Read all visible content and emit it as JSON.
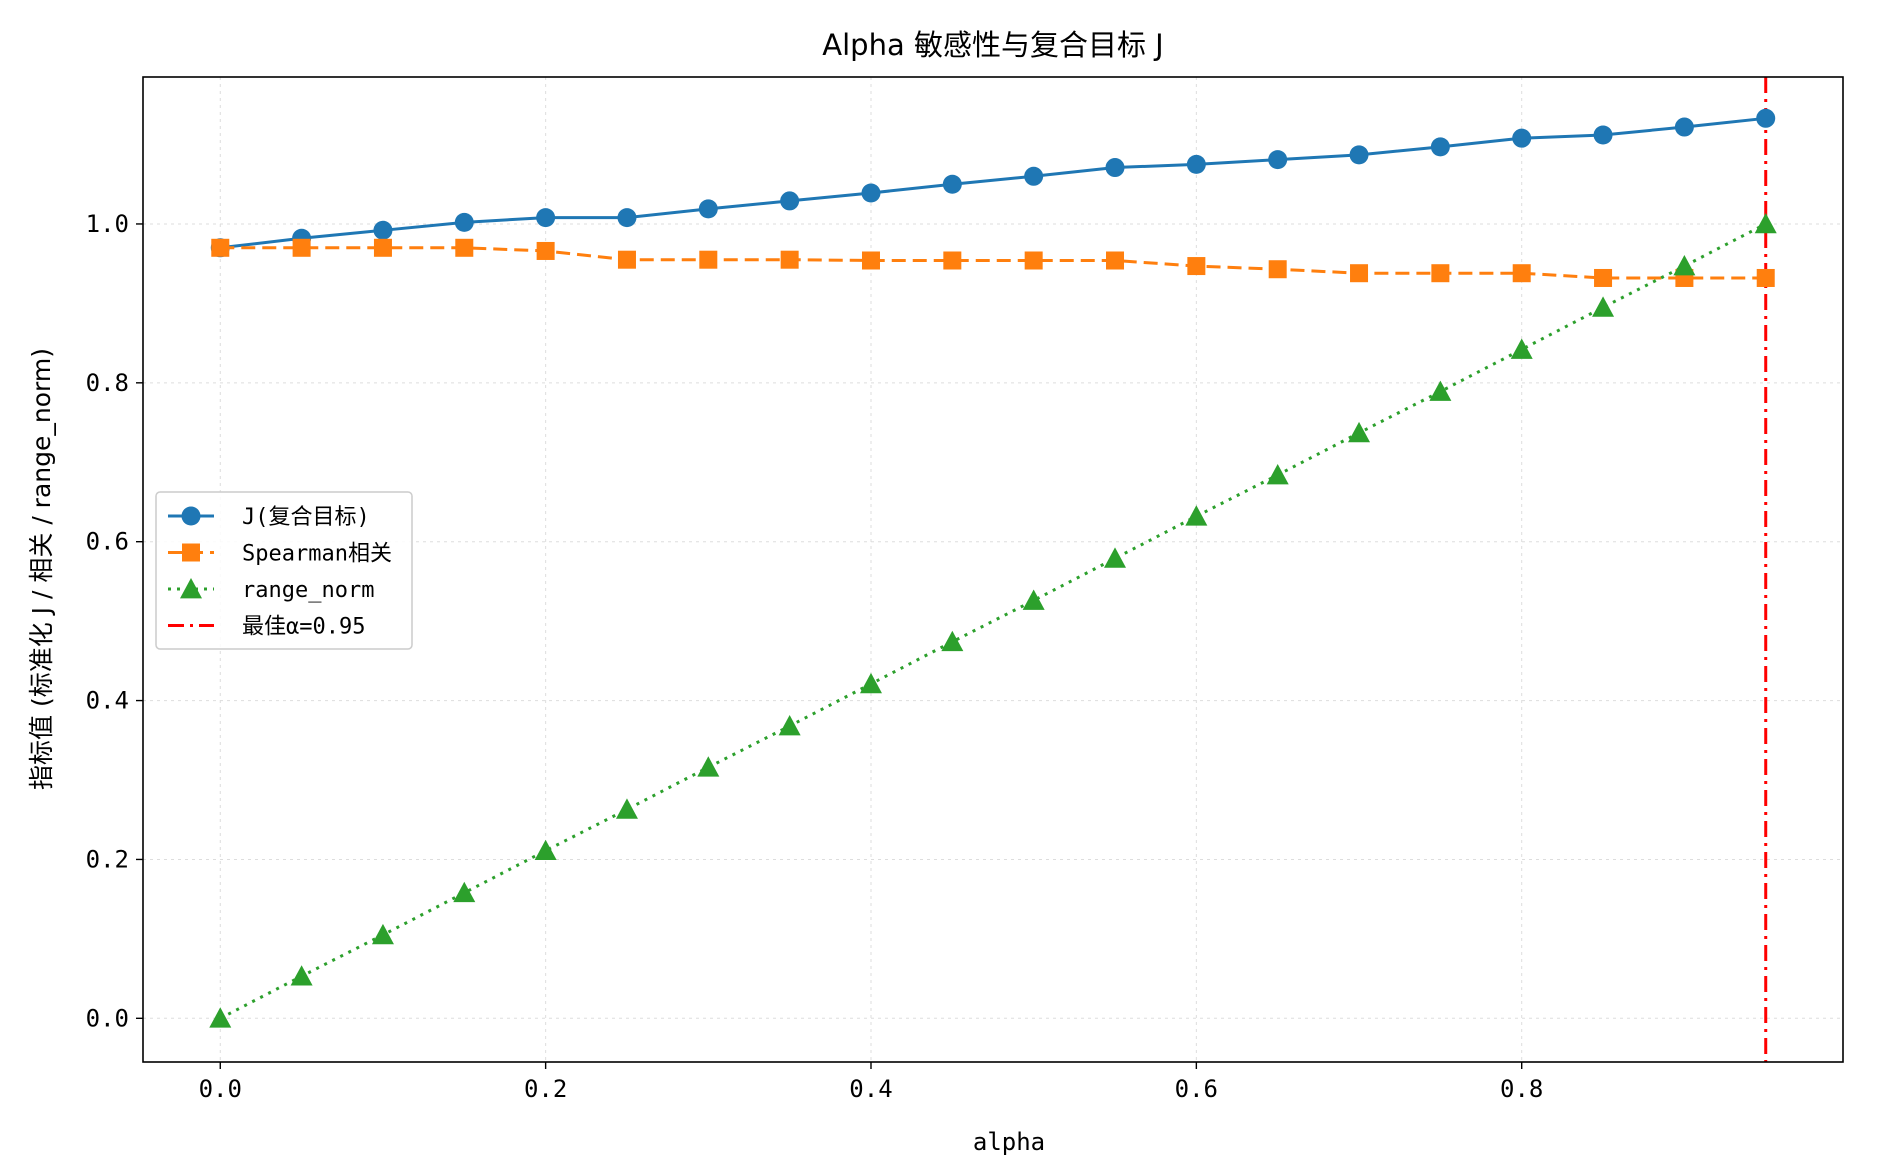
{
  "chart_data": {
    "type": "line",
    "title": "Alpha 敏感性与复合目标 J",
    "xlabel": "alpha",
    "ylabel": "指标值 (标准化 J / 相关 / range_norm)",
    "xlim": [
      -0.0475,
      0.9975
    ],
    "ylim": [
      -0.055,
      1.185
    ],
    "xticks": [
      0.0,
      0.2,
      0.4,
      0.6,
      0.8
    ],
    "xtick_labels": [
      "0.0",
      "0.2",
      "0.4",
      "0.6",
      "0.8"
    ],
    "yticks": [
      0.0,
      0.2,
      0.4,
      0.6,
      0.8,
      1.0
    ],
    "ytick_labels": [
      "0.0",
      "0.2",
      "0.4",
      "0.6",
      "0.8",
      "1.0"
    ],
    "grid": true,
    "legend_position": "center-left",
    "x": [
      0.0,
      0.05,
      0.1,
      0.15,
      0.2,
      0.25,
      0.3,
      0.35,
      0.4,
      0.45,
      0.5,
      0.55,
      0.6,
      0.65,
      0.7,
      0.75,
      0.8,
      0.85,
      0.9,
      0.95
    ],
    "series": [
      {
        "name": "J(复合目标)",
        "color": "#1f77b4",
        "line_style": "solid",
        "marker": "circle",
        "values": [
          0.97,
          0.982,
          0.992,
          1.002,
          1.008,
          1.008,
          1.019,
          1.029,
          1.039,
          1.05,
          1.06,
          1.071,
          1.075,
          1.081,
          1.087,
          1.097,
          1.108,
          1.112,
          1.122,
          1.133
        ]
      },
      {
        "name": "Spearman相关",
        "color": "#ff7f0e",
        "line_style": "dashed",
        "marker": "square",
        "values": [
          0.97,
          0.97,
          0.97,
          0.97,
          0.966,
          0.955,
          0.955,
          0.955,
          0.954,
          0.954,
          0.954,
          0.954,
          0.947,
          0.943,
          0.938,
          0.938,
          0.938,
          0.932,
          0.932,
          0.932
        ]
      },
      {
        "name": "range_norm",
        "color": "#2ca02c",
        "line_style": "dotted",
        "marker": "triangle",
        "values": [
          0.0,
          0.053,
          0.105,
          0.158,
          0.211,
          0.263,
          0.316,
          0.368,
          0.421,
          0.474,
          0.526,
          0.579,
          0.632,
          0.684,
          0.737,
          0.789,
          0.842,
          0.895,
          0.947,
          1.0
        ]
      }
    ],
    "vline": {
      "name": "最佳α=0.95",
      "x": 0.95,
      "color": "#ff0000",
      "line_style": "dashdot"
    }
  }
}
